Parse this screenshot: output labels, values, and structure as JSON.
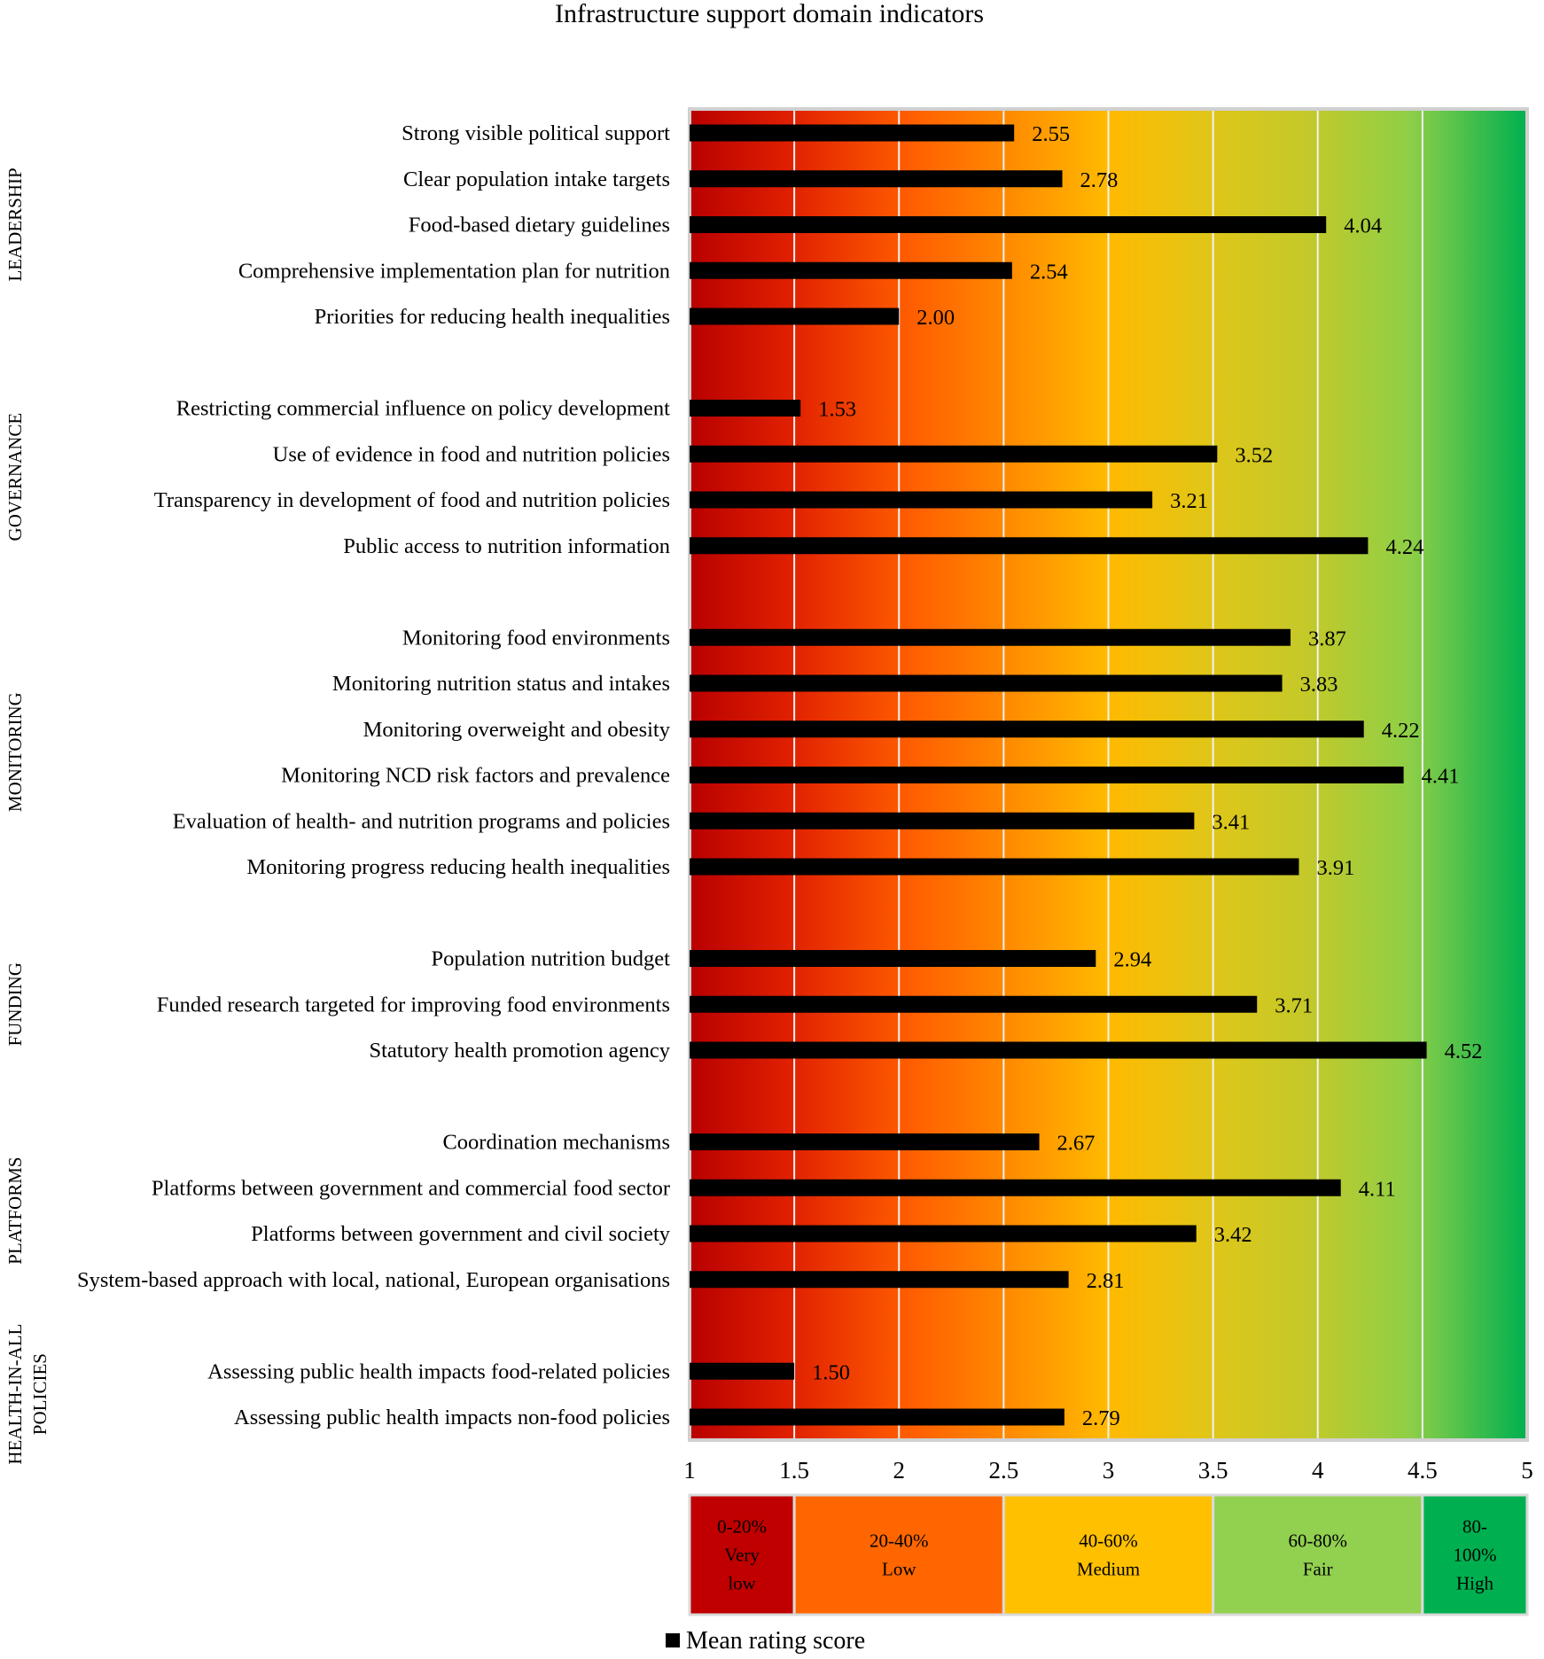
{
  "chart_data": {
    "type": "bar",
    "orientation": "horizontal",
    "title": "Infrastructure support domain indicators",
    "xlim": [
      1,
      5
    ],
    "x_ticks": [
      "1",
      "1.5",
      "2",
      "2.5",
      "3",
      "3.5",
      "4",
      "4.5",
      "5"
    ],
    "series": [
      {
        "name": "Mean rating score",
        "color": "#000000"
      }
    ],
    "legend": {
      "position": "bottom",
      "label": "Mean rating score"
    },
    "groups": [
      {
        "name": "LEADERSHIP",
        "name_lines": [
          "LEADERSHIP"
        ],
        "items": [
          {
            "label": "Strong visible political support",
            "value": 2.55,
            "value_label": "2.55"
          },
          {
            "label": "Clear population intake targets",
            "value": 2.78,
            "value_label": "2.78"
          },
          {
            "label": "Food-based dietary guidelines",
            "value": 4.04,
            "value_label": "4.04"
          },
          {
            "label": "Comprehensive implementation plan for nutrition",
            "value": 2.54,
            "value_label": "2.54"
          },
          {
            "label": "Priorities for reducing health inequalities",
            "value": 2.0,
            "value_label": "2.00"
          }
        ]
      },
      {
        "name": "GOVERNANCE",
        "name_lines": [
          "GOVERNANCE"
        ],
        "items": [
          {
            "label": "Restricting commercial influence on policy development",
            "value": 1.53,
            "value_label": "1.53"
          },
          {
            "label": "Use of evidence in food and nutrition policies",
            "value": 3.52,
            "value_label": "3.52"
          },
          {
            "label": "Transparency in development of food and nutrition policies",
            "value": 3.21,
            "value_label": "3.21"
          },
          {
            "label": "Public access to nutrition information",
            "value": 4.24,
            "value_label": "4.24"
          }
        ]
      },
      {
        "name": "MONITORING",
        "name_lines": [
          "MONITORING"
        ],
        "items": [
          {
            "label": "Monitoring food environments",
            "value": 3.87,
            "value_label": "3.87"
          },
          {
            "label": "Monitoring nutrition status and intakes",
            "value": 3.83,
            "value_label": "3.83"
          },
          {
            "label": "Monitoring overweight and obesity",
            "value": 4.22,
            "value_label": "4.22"
          },
          {
            "label": "Monitoring NCD risk factors and prevalence",
            "value": 4.41,
            "value_label": "4.41"
          },
          {
            "label": "Evaluation of health- and nutrition programs and policies",
            "value": 3.41,
            "value_label": "3.41"
          },
          {
            "label": "Monitoring progress reducing health inequalities",
            "value": 3.91,
            "value_label": "3.91"
          }
        ]
      },
      {
        "name": "FUNDING",
        "name_lines": [
          "FUNDING"
        ],
        "items": [
          {
            "label": "Population nutrition budget",
            "value": 2.94,
            "value_label": "2.94"
          },
          {
            "label": "Funded research targeted for improving food environments",
            "value": 3.71,
            "value_label": "3.71"
          },
          {
            "label": "Statutory health promotion agency",
            "value": 4.52,
            "value_label": "4.52"
          }
        ]
      },
      {
        "name": "PLATFORMS",
        "name_lines": [
          "PLATFORMS"
        ],
        "items": [
          {
            "label": "Coordination mechanisms",
            "value": 2.67,
            "value_label": "2.67"
          },
          {
            "label": "Platforms between government and commercial food sector",
            "value": 4.11,
            "value_label": "4.11"
          },
          {
            "label": "Platforms between government and civil society",
            "value": 3.42,
            "value_label": "3.42"
          },
          {
            "label": "System-based approach with local, national, European organisations",
            "value": 2.81,
            "value_label": "2.81"
          }
        ]
      },
      {
        "name": "HEALTH-IN-ALL POLICIES",
        "name_lines": [
          "HEALTH-IN-ALL",
          "POLICIES"
        ],
        "items": [
          {
            "label": "Assessing public health impacts food-related policies",
            "value": 1.5,
            "value_label": "1.50"
          },
          {
            "label": "Assessing public health impacts non-food policies",
            "value": 2.79,
            "value_label": "2.79"
          }
        ]
      }
    ],
    "bands": [
      {
        "from": 1,
        "to": 1.5,
        "lines": [
          "0-20%",
          "Very",
          "low"
        ],
        "color": "#c00000"
      },
      {
        "from": 1.5,
        "to": 2.5,
        "lines": [
          "20-40%",
          "Low"
        ],
        "color": "#ff6600"
      },
      {
        "from": 2.5,
        "to": 3.5,
        "lines": [
          "40-60%",
          "Medium"
        ],
        "color": "#ffc000"
      },
      {
        "from": 3.5,
        "to": 4.5,
        "lines": [
          "60-80%",
          "Fair"
        ],
        "color": "#92d050"
      },
      {
        "from": 4.5,
        "to": 5,
        "lines": [
          "80-",
          "100%",
          "High"
        ],
        "color": "#00b050"
      }
    ]
  }
}
